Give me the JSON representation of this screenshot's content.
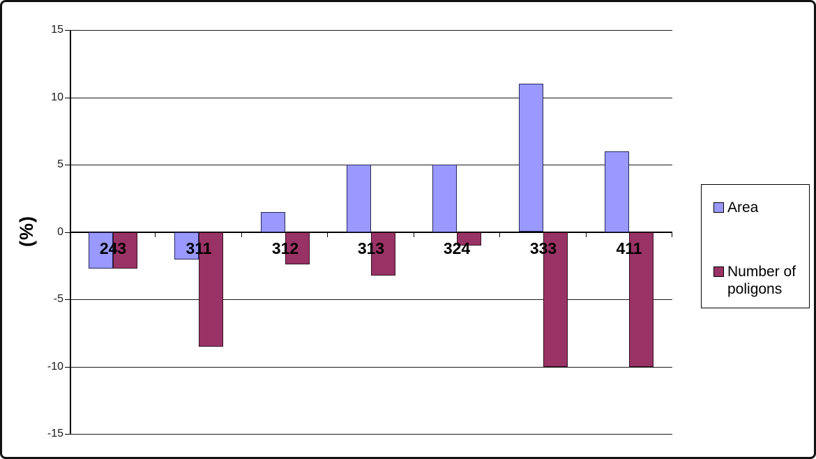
{
  "chart_data": {
    "type": "bar",
    "title": "",
    "ylabel": "(%)",
    "xlabel": "",
    "categories": [
      "243",
      "311",
      "312",
      "313",
      "324",
      "333",
      "411"
    ],
    "series": [
      {
        "name": "Area",
        "color": "#9999FF",
        "border_color": "#26265e",
        "values": [
          -2.7,
          -2.0,
          1.5,
          5.0,
          5.0,
          11.0,
          6.0
        ]
      },
      {
        "name": "Number of poligons",
        "color": "#993366",
        "border_color": "#33101f",
        "values": [
          -2.7,
          -8.5,
          -2.4,
          -3.2,
          -1.0,
          -10.0,
          -10.0
        ]
      }
    ],
    "ylim": [
      -15,
      15
    ],
    "yticks": [
      15,
      10,
      5,
      0,
      -5,
      -10,
      -15
    ],
    "grid": true,
    "legend_position": "right",
    "category_labels_at_zero_line": true
  }
}
